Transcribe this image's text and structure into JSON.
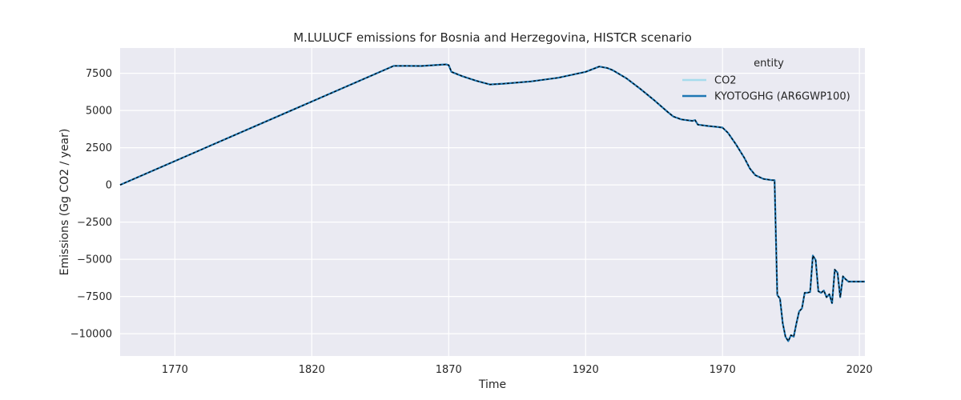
{
  "chart_data": {
    "type": "line",
    "title": "M.LULUCF emissions for Bosnia and Herzegovina, HISTCR scenario",
    "xlabel": "Time",
    "ylabel": "Emissions (Gg CO2 / year)",
    "xlim": [
      1750,
      2022
    ],
    "ylim": [
      -11500,
      9200
    ],
    "xticks": [
      1770,
      1820,
      1870,
      1920,
      1970,
      2020
    ],
    "yticks": [
      -10000,
      -7500,
      -5000,
      -2500,
      0,
      2500,
      5000,
      7500
    ],
    "grid": true,
    "legend": {
      "title": "entity",
      "placement": "top-right"
    },
    "colors": {
      "background": "#eaeaf2",
      "grid": "#ffffff",
      "dashed_overlay": "#000000"
    },
    "series": [
      {
        "name": "CO2",
        "color": "#a6dcec",
        "style": "solid",
        "x": [
          1750,
          1850,
          1860,
          1869,
          1870,
          1871,
          1875,
          1880,
          1885,
          1890,
          1900,
          1910,
          1920,
          1925,
          1928,
          1930,
          1935,
          1940,
          1945,
          1950,
          1952,
          1955,
          1959,
          1960,
          1961,
          1965,
          1968,
          1970,
          1972,
          1975,
          1978,
          1980,
          1982,
          1985,
          1988,
          1989,
          1990,
          1991,
          1992,
          1993,
          1994,
          1995,
          1996,
          1997,
          1998,
          1999,
          2000,
          2001,
          2002,
          2003,
          2004,
          2005,
          2006,
          2007,
          2008,
          2009,
          2010,
          2011,
          2012,
          2013,
          2014,
          2015,
          2016,
          2017,
          2018,
          2019,
          2020,
          2021,
          2022
        ],
        "y": [
          0,
          8000,
          7990,
          8100,
          8050,
          7600,
          7300,
          7000,
          6750,
          6800,
          6950,
          7200,
          7600,
          7950,
          7850,
          7700,
          7150,
          6450,
          5700,
          4900,
          4600,
          4400,
          4300,
          4350,
          4050,
          3950,
          3900,
          3850,
          3500,
          2700,
          1800,
          1100,
          650,
          400,
          320,
          320,
          -7400,
          -7650,
          -9300,
          -10200,
          -10500,
          -10100,
          -10200,
          -9300,
          -8500,
          -8300,
          -7250,
          -7250,
          -7200,
          -4750,
          -5050,
          -7150,
          -7250,
          -7100,
          -7550,
          -7350,
          -7950,
          -5700,
          -5900,
          -7550,
          -6150,
          -6350,
          -6500,
          -6500,
          -6500,
          -6500,
          -6500,
          -6500,
          -6500
        ]
      },
      {
        "name": "KYOTOGHG (AR6GWP100)",
        "color": "#1f77b4",
        "style": "dashed",
        "x": [
          1750,
          1850,
          1860,
          1869,
          1870,
          1871,
          1875,
          1880,
          1885,
          1890,
          1900,
          1910,
          1920,
          1925,
          1928,
          1930,
          1935,
          1940,
          1945,
          1950,
          1952,
          1955,
          1959,
          1960,
          1961,
          1965,
          1968,
          1970,
          1972,
          1975,
          1978,
          1980,
          1982,
          1985,
          1988,
          1989,
          1990,
          1991,
          1992,
          1993,
          1994,
          1995,
          1996,
          1997,
          1998,
          1999,
          2000,
          2001,
          2002,
          2003,
          2004,
          2005,
          2006,
          2007,
          2008,
          2009,
          2010,
          2011,
          2012,
          2013,
          2014,
          2015,
          2016,
          2017,
          2018,
          2019,
          2020,
          2021,
          2022
        ],
        "y": [
          0,
          8000,
          7990,
          8100,
          8050,
          7600,
          7300,
          7000,
          6750,
          6800,
          6950,
          7200,
          7600,
          7950,
          7850,
          7700,
          7150,
          6450,
          5700,
          4900,
          4600,
          4400,
          4300,
          4350,
          4050,
          3950,
          3900,
          3850,
          3500,
          2700,
          1800,
          1100,
          650,
          400,
          320,
          320,
          -7400,
          -7650,
          -9300,
          -10200,
          -10500,
          -10100,
          -10200,
          -9300,
          -8500,
          -8300,
          -7250,
          -7250,
          -7200,
          -4750,
          -5050,
          -7150,
          -7250,
          -7100,
          -7550,
          -7350,
          -7950,
          -5700,
          -5900,
          -7550,
          -6150,
          -6350,
          -6500,
          -6500,
          -6500,
          -6500,
          -6500,
          -6500,
          -6500
        ]
      }
    ]
  }
}
